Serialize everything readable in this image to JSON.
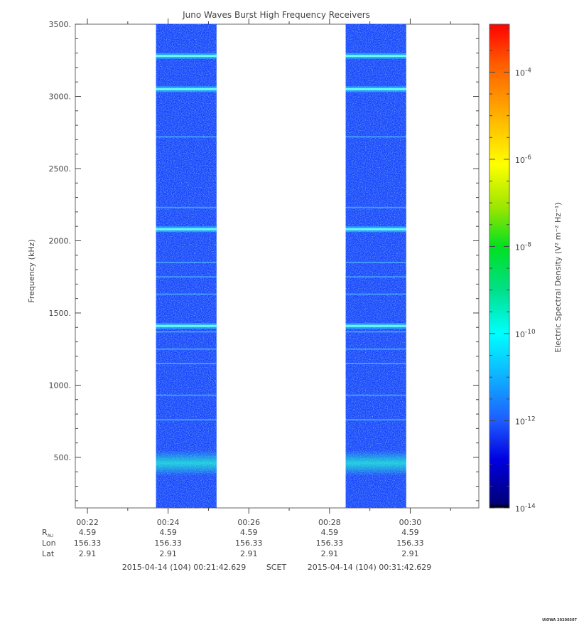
{
  "chart_data": {
    "type": "heatmap",
    "title": "Juno Waves Burst High Frequency Receivers",
    "ylabel": "Frequency (kHz)",
    "ylim": [
      150,
      3500
    ],
    "yticks": [
      {
        "value": 500,
        "label": "500."
      },
      {
        "value": 1000,
        "label": "1000."
      },
      {
        "value": 1500,
        "label": "1500."
      },
      {
        "value": 2000,
        "label": "2000."
      },
      {
        "value": 2500,
        "label": "2500."
      },
      {
        "value": 3000,
        "label": "3000."
      },
      {
        "value": 3500,
        "label": "3500."
      }
    ],
    "xlim_min": [
      21.7,
      31.7
    ],
    "xticks": [
      {
        "value": 22,
        "label": "00:22"
      },
      {
        "value": 24,
        "label": "00:24"
      },
      {
        "value": 26,
        "label": "00:26"
      },
      {
        "value": 28,
        "label": "00:28"
      },
      {
        "value": 30,
        "label": "00:30"
      }
    ],
    "data_blocks_min": [
      [
        23.7,
        25.2
      ],
      [
        28.4,
        29.9
      ]
    ],
    "emission_lines_khz": [
      460,
      1410,
      2080,
      3050,
      3280
    ],
    "weak_lines_khz": [
      760,
      930,
      1150,
      1250,
      1370,
      1630,
      1750,
      1850,
      2230,
      2720
    ],
    "colorbar": {
      "label": "Electric Spectral Density (V² m⁻² Hz⁻¹)",
      "log_range": [
        -14,
        -2.9
      ],
      "ticks": [
        {
          "exp": -14,
          "label": "10",
          "sup": "-14"
        },
        {
          "exp": -12,
          "label": "10",
          "sup": "-12"
        },
        {
          "exp": -10,
          "label": "10",
          "sup": "-10"
        },
        {
          "exp": -8,
          "label": "10",
          "sup": "-8"
        },
        {
          "exp": -6,
          "label": "10",
          "sup": "-6"
        },
        {
          "exp": -4,
          "label": "10",
          "sup": "-4"
        }
      ]
    },
    "ephemeris": {
      "rows": [
        {
          "label": "R",
          "sub": "AU",
          "values": [
            "4.59",
            "4.59",
            "4.59",
            "4.59",
            "4.59"
          ]
        },
        {
          "label": "Lon",
          "sub": "",
          "values": [
            "156.33",
            "156.33",
            "156.33",
            "156.33",
            "156.33"
          ]
        },
        {
          "label": "Lat",
          "sub": "",
          "values": [
            "2.91",
            "2.91",
            "2.91",
            "2.91",
            "2.91"
          ]
        }
      ]
    },
    "time_range": {
      "start": "2015-04-14 (104) 00:21:42.629",
      "label": "SCET",
      "end": "2015-04-14 (104) 00:31:42.629"
    },
    "footer": "UIOWA 20200307"
  }
}
